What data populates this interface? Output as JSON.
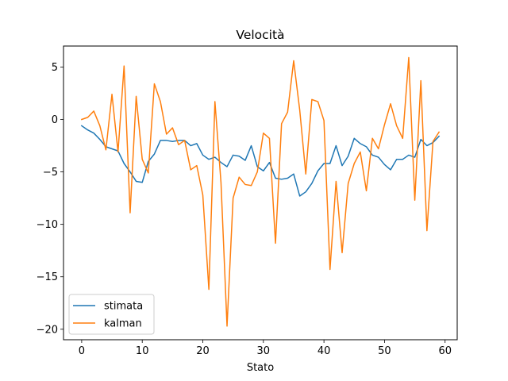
{
  "chart_data": {
    "type": "line",
    "title": "Velocità",
    "xlabel": "Stato",
    "ylabel": "",
    "xlim": [
      -3,
      62
    ],
    "ylim": [
      -21,
      7
    ],
    "xticks": [
      0,
      10,
      20,
      30,
      40,
      50,
      60
    ],
    "yticks": [
      5,
      0,
      -5,
      -10,
      -15,
      -20
    ],
    "ytick_labels": [
      "5",
      "0",
      "−5",
      "−10",
      "−15",
      "−20"
    ],
    "grid": false,
    "legend_position": "lower-left",
    "x": [
      0,
      1,
      2,
      3,
      4,
      5,
      6,
      7,
      8,
      9,
      10,
      11,
      12,
      13,
      14,
      15,
      16,
      17,
      18,
      19,
      20,
      21,
      22,
      23,
      24,
      25,
      26,
      27,
      28,
      29,
      30,
      31,
      32,
      33,
      34,
      35,
      36,
      37,
      38,
      39,
      40,
      41,
      42,
      43,
      44,
      45,
      46,
      47,
      48,
      49,
      50,
      51,
      52,
      53,
      54,
      55,
      56,
      57,
      58,
      59
    ],
    "series": [
      {
        "name": "stimata",
        "color": "#1f77b4",
        "values": [
          -0.6,
          -1.0,
          -1.3,
          -1.9,
          -2.6,
          -2.8,
          -3.0,
          -4.2,
          -5.0,
          -5.9,
          -6.0,
          -4.0,
          -3.3,
          -2.0,
          -2.0,
          -2.1,
          -2.0,
          -2.0,
          -2.5,
          -2.3,
          -3.4,
          -3.8,
          -3.6,
          -4.1,
          -4.5,
          -3.4,
          -3.5,
          -3.9,
          -2.5,
          -4.5,
          -4.9,
          -4.1,
          -5.6,
          -5.7,
          -5.6,
          -5.2,
          -7.3,
          -6.9,
          -6.1,
          -4.9,
          -4.2,
          -4.2,
          -2.5,
          -4.4,
          -3.5,
          -1.8,
          -2.3,
          -2.6,
          -3.4,
          -3.6,
          -4.3,
          -4.8,
          -3.8,
          -3.8,
          -3.4,
          -3.6,
          -1.9,
          -2.5,
          -2.2,
          -1.6
        ]
      },
      {
        "name": "kalman",
        "color": "#ff7f0e",
        "values": [
          0.0,
          0.2,
          0.8,
          -0.6,
          -2.9,
          2.4,
          -3.1,
          5.1,
          -8.9,
          2.2,
          -3.8,
          -5.1,
          3.4,
          1.7,
          -1.4,
          -0.8,
          -2.4,
          -2.0,
          -4.8,
          -4.4,
          -7.2,
          -16.2,
          1.7,
          -6.0,
          -19.7,
          -7.5,
          -5.5,
          -6.2,
          -6.3,
          -5.0,
          -1.3,
          -1.8,
          -11.8,
          -0.4,
          0.7,
          5.6,
          0.9,
          -5.2,
          1.9,
          1.7,
          -0.1,
          -14.3,
          -5.9,
          -12.7,
          -6.1,
          -4.2,
          -3.1,
          -6.8,
          -1.8,
          -2.8,
          -0.5,
          1.5,
          -0.6,
          -1.8,
          5.9,
          -7.7,
          3.7,
          -10.6,
          -2.1,
          -1.2
        ]
      }
    ]
  }
}
